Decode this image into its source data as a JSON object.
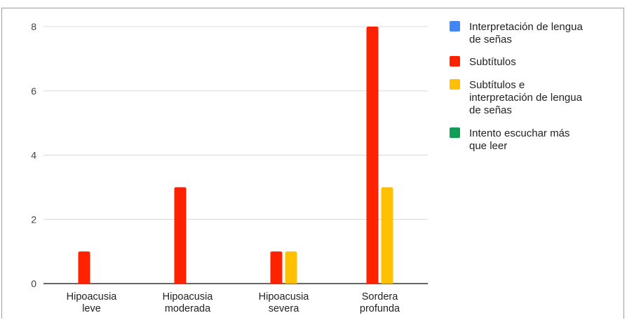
{
  "chart_data": {
    "type": "bar",
    "categories": [
      [
        "Hipoacusia",
        "leve"
      ],
      [
        "Hipoacusia",
        "moderada"
      ],
      [
        "Hipoacusia",
        "severa"
      ],
      [
        "Sordera",
        "profunda"
      ]
    ],
    "series": [
      {
        "name": [
          "Interpretación de lengua",
          "de señas"
        ],
        "color": "#4285f4",
        "values": [
          0,
          0,
          0,
          0
        ]
      },
      {
        "name": [
          "Subtítulos"
        ],
        "color": "#ff2200",
        "values": [
          1,
          3,
          1,
          8
        ]
      },
      {
        "name": [
          "Subtítulos e",
          "interpretación de lengua",
          "de señas"
        ],
        "color": "#ffc000",
        "values": [
          0,
          0,
          1,
          3
        ]
      },
      {
        "name": [
          "Intento escuchar más",
          "que leer"
        ],
        "color": "#0f9d58",
        "values": [
          0,
          0,
          0,
          0
        ]
      }
    ],
    "ylim": [
      0,
      8
    ],
    "yticks": [
      "0",
      "2",
      "4",
      "6",
      "8"
    ],
    "grid": true,
    "legend": "right"
  }
}
